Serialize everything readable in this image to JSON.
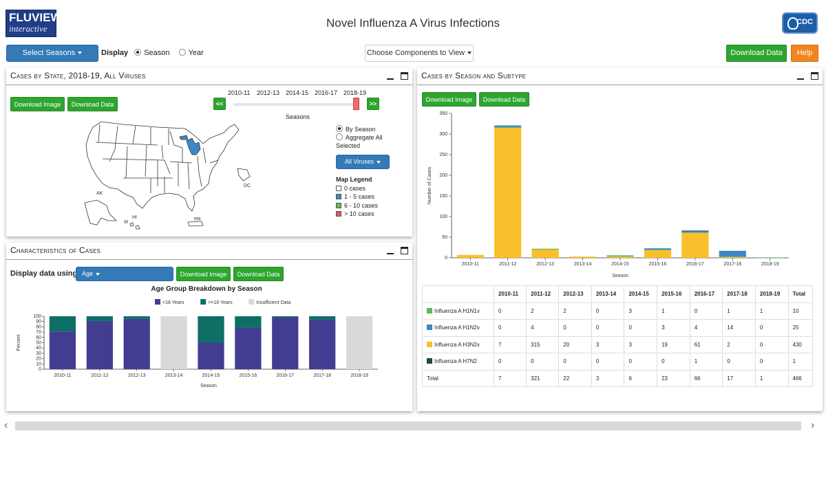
{
  "header": {
    "logo_line1": "FLUVIEW",
    "logo_line2": "interactive",
    "title": "Novel Influenza A Virus Infections",
    "cdc_label": "CDC"
  },
  "toolbar": {
    "select_seasons": "Select Seasons",
    "display_label": "Display",
    "radio_season": "Season",
    "radio_year": "Year",
    "choose_components": "Choose Components to View",
    "download_data": "Download Data",
    "help": "Help"
  },
  "map_panel": {
    "title": "Cases by State, 2018-19, All Viruses",
    "download_image": "Download Image",
    "download_data": "Download Data",
    "slider_seasons": [
      "2010-11",
      "2012-13",
      "2014-15",
      "2016-17",
      "2018-19"
    ],
    "slider_prev": "<<",
    "slider_next": ">>",
    "slider_label": "Seasons",
    "radio_by_season": "By Season",
    "radio_aggregate": "Aggregate All Selected",
    "virus_select": "All Viruses",
    "legend_title": "Map Legend",
    "legend": [
      {
        "label": "0 cases",
        "color": "#ffffff"
      },
      {
        "label": "1 - 5 cases",
        "color": "#3f86c6"
      },
      {
        "label": "6 - 10 cases",
        "color": "#5fb85f"
      },
      {
        "label": "> 10 cases",
        "color": "#e35a5a"
      }
    ],
    "labels": {
      "ak": "AK",
      "hi": "HI",
      "pr": "PR",
      "dc": "DC"
    }
  },
  "char_panel": {
    "title": "Characteristics of Cases",
    "display_using_label": "Display data using:",
    "select_value": "Age",
    "download_image": "Download Image",
    "download_data": "Download Data"
  },
  "season_panel": {
    "title": "Cases by Season and Subtype",
    "download_image": "Download Image",
    "download_data": "Download Data"
  },
  "chart_data": [
    {
      "type": "bar",
      "title": "Cases by Season and Subtype",
      "xlabel": "Season",
      "ylabel": "Number of Cases",
      "ylim": [
        0,
        350
      ],
      "yticks": [
        0,
        50,
        100,
        150,
        200,
        250,
        300,
        350
      ],
      "categories": [
        "2010-11",
        "2011-12",
        "2012-13",
        "2013-14",
        "2014-15",
        "2015-16",
        "2016-17",
        "2017-18",
        "2018-19"
      ],
      "stacked": true,
      "series": [
        {
          "name": "Influenza A H3N2v",
          "color": "#f9c02b",
          "values": [
            7,
            315,
            20,
            3,
            3,
            19,
            61,
            2,
            0
          ]
        },
        {
          "name": "Influenza A H1N1v",
          "color": "#5cb85c",
          "values": [
            0,
            2,
            2,
            0,
            3,
            1,
            0,
            1,
            1
          ]
        },
        {
          "name": "Influenza A H1N2v",
          "color": "#3f86c6",
          "values": [
            0,
            4,
            0,
            0,
            0,
            3,
            4,
            14,
            0
          ]
        },
        {
          "name": "Influenza A H7N2",
          "color": "#1f4d2f",
          "values": [
            0,
            0,
            0,
            0,
            0,
            0,
            1,
            0,
            0
          ]
        }
      ]
    },
    {
      "type": "bar",
      "title": "Age Group Breakdown by Season",
      "xlabel": "Season",
      "ylabel": "Percent",
      "ylim": [
        0,
        100
      ],
      "yticks": [
        0,
        10,
        20,
        30,
        40,
        50,
        60,
        70,
        80,
        90,
        100
      ],
      "categories": [
        "2010-11",
        "2011-12",
        "2012-13",
        "2013-14",
        "2014-15",
        "2015-16",
        "2016-17",
        "2017-18",
        "2018-19"
      ],
      "stacked": true,
      "series": [
        {
          "name": "<18 Years",
          "color": "#433d92",
          "values": [
            71,
            91,
            95,
            0,
            50,
            78,
            98,
            94,
            0
          ]
        },
        {
          "name": ">=18 Years",
          "color": "#0f6f67",
          "values": [
            29,
            9,
            5,
            0,
            50,
            22,
            2,
            6,
            0
          ]
        },
        {
          "name": "Insufficient Data",
          "color": "#d9d9d9",
          "values": [
            0,
            0,
            0,
            100,
            0,
            0,
            0,
            0,
            100
          ]
        }
      ]
    },
    {
      "type": "table",
      "columns": [
        "",
        "2010-11",
        "2011-12",
        "2012-13",
        "2013-14",
        "2014-15",
        "2015-16",
        "2016-17",
        "2017-18",
        "2018-19",
        "Total"
      ],
      "rows": [
        {
          "label": "Influenza A H1N1v",
          "color": "#5cb85c",
          "values": [
            "0",
            "2",
            "2",
            "0",
            "3",
            "1",
            "0",
            "1",
            "1",
            "10"
          ]
        },
        {
          "label": "Influenza A H1N2v",
          "color": "#3f86c6",
          "values": [
            "0",
            "4",
            "0",
            "0",
            "0",
            "3",
            "4",
            "14",
            "0",
            "25"
          ]
        },
        {
          "label": "Influenza A H3N2v",
          "color": "#f9c02b",
          "values": [
            "7",
            "315",
            "20",
            "3",
            "3",
            "19",
            "61",
            "2",
            "0",
            "430"
          ]
        },
        {
          "label": "Influenza A H7N2",
          "color": "#1f4d2f",
          "values": [
            "0",
            "0",
            "0",
            "0",
            "0",
            "0",
            "1",
            "0",
            "0",
            "1"
          ]
        },
        {
          "label": "Total",
          "color": "",
          "values": [
            "7",
            "321",
            "22",
            "3",
            "6",
            "23",
            "66",
            "17",
            "1",
            "466"
          ]
        }
      ]
    }
  ]
}
